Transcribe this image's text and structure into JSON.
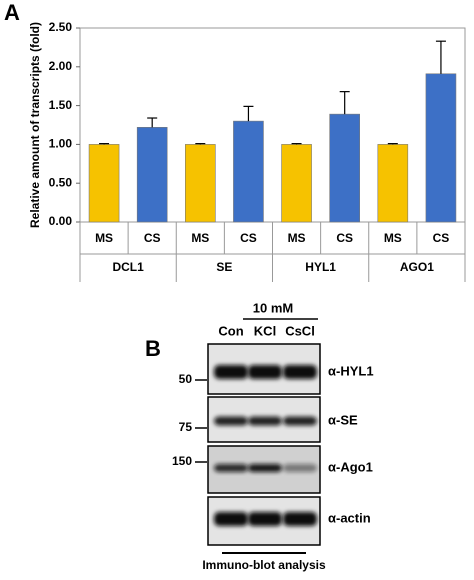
{
  "panel_a": {
    "label": "A"
  },
  "chart_data": {
    "type": "bar",
    "ylabel": "Relative amount of transcripts (fold)",
    "categories": [
      "DCL1",
      "SE",
      "HYL1",
      "AGO1"
    ],
    "series": [
      {
        "name": "MS",
        "color": "#f6c200",
        "values": [
          1.0,
          1.0,
          1.0,
          1.0
        ],
        "errors": [
          0.01,
          0.01,
          0.01,
          0.01
        ]
      },
      {
        "name": "CS",
        "color": "#3d70c6",
        "values": [
          1.22,
          1.3,
          1.39,
          1.91
        ],
        "errors": [
          0.12,
          0.19,
          0.29,
          0.42
        ]
      }
    ],
    "ylim": [
      0,
      2.5
    ],
    "yticks": [
      {
        "value": 0,
        "label": "0.00"
      },
      {
        "value": 0.5,
        "label": "0.50"
      },
      {
        "value": 1,
        "label": "1.00"
      },
      {
        "value": 1.5,
        "label": "1.50"
      },
      {
        "value": 2,
        "label": "2.00"
      },
      {
        "value": 2.5,
        "label": "2.50"
      }
    ],
    "grid": false
  },
  "panel_b": {
    "label": "B",
    "treatment": "10 mM",
    "lanes": [
      "Con",
      "KCl",
      "CsCl"
    ],
    "rows": [
      {
        "marker": "50",
        "antibody": "α-HYL1"
      },
      {
        "marker": "75",
        "antibody": "α-SE"
      },
      {
        "marker": "150",
        "antibody": "α-Ago1"
      },
      {
        "marker": null,
        "antibody": "α-actin"
      }
    ],
    "footer": "Immuno-blot analysis"
  }
}
